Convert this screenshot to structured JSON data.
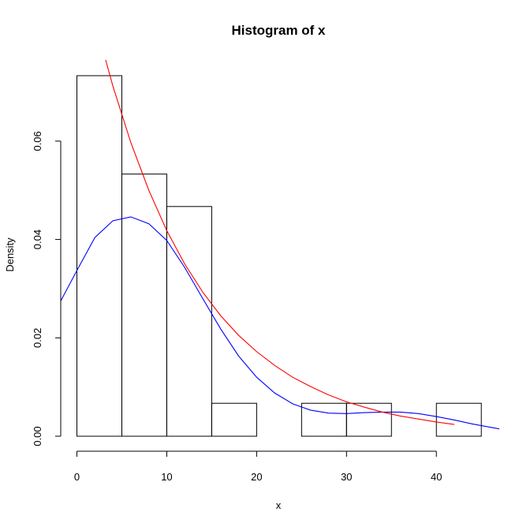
{
  "chart_data": {
    "type": "bar",
    "title": "Histogram of x",
    "xlabel": "x",
    "ylabel": "Density",
    "bins": [
      {
        "from": 0,
        "to": 5,
        "density": 0.0733
      },
      {
        "from": 5,
        "to": 10,
        "density": 0.0533
      },
      {
        "from": 10,
        "to": 15,
        "density": 0.0467
      },
      {
        "from": 15,
        "to": 20,
        "density": 0.0067
      },
      {
        "from": 20,
        "to": 25,
        "density": 0.0
      },
      {
        "from": 25,
        "to": 30,
        "density": 0.0067
      },
      {
        "from": 30,
        "to": 35,
        "density": 0.0067
      },
      {
        "from": 35,
        "to": 40,
        "density": 0.0
      },
      {
        "from": 40,
        "to": 45,
        "density": 0.0067
      }
    ],
    "xlim": [
      -1.8,
      47
    ],
    "ylim": [
      0,
      0.0765
    ],
    "x_ticks": [
      {
        "value": 0,
        "label": "0"
      },
      {
        "value": 10,
        "label": "10"
      },
      {
        "value": 20,
        "label": "20"
      },
      {
        "value": 30,
        "label": "30"
      },
      {
        "value": 40,
        "label": "40"
      }
    ],
    "y_ticks": [
      {
        "value": 0,
        "label": "0.00"
      },
      {
        "value": 0.02,
        "label": "0.02"
      },
      {
        "value": 0.04,
        "label": "0.04"
      },
      {
        "value": 0.06,
        "label": "0.06"
      }
    ],
    "series": [
      {
        "type": "line",
        "color": "#0000ff",
        "points": [
          [
            -1.8,
            0.0275
          ],
          [
            0,
            0.0337
          ],
          [
            2,
            0.0404
          ],
          [
            4,
            0.0438
          ],
          [
            6,
            0.0446
          ],
          [
            8,
            0.0432
          ],
          [
            10,
            0.0398
          ],
          [
            12,
            0.0343
          ],
          [
            14,
            0.028
          ],
          [
            16,
            0.0218
          ],
          [
            18,
            0.0163
          ],
          [
            20,
            0.012
          ],
          [
            22,
            0.0088
          ],
          [
            24,
            0.0066
          ],
          [
            26,
            0.0053
          ],
          [
            28,
            0.0047
          ],
          [
            30,
            0.0046
          ],
          [
            32,
            0.0048
          ],
          [
            34,
            0.0049
          ],
          [
            36,
            0.0049
          ],
          [
            38,
            0.0046
          ],
          [
            40,
            0.004
          ],
          [
            42,
            0.0033
          ],
          [
            44,
            0.0025
          ],
          [
            47,
            0.0015
          ]
        ]
      },
      {
        "type": "line",
        "color": "#ff0000",
        "points": [
          [
            3.2,
            0.0765
          ],
          [
            4,
            0.0712
          ],
          [
            6,
            0.0597
          ],
          [
            8,
            0.05
          ],
          [
            10,
            0.0418
          ],
          [
            12,
            0.035
          ],
          [
            14,
            0.0293
          ],
          [
            16,
            0.0245
          ],
          [
            18,
            0.0205
          ],
          [
            20,
            0.0172
          ],
          [
            22,
            0.0144
          ],
          [
            24,
            0.012
          ],
          [
            26,
            0.0101
          ],
          [
            28,
            0.0084
          ],
          [
            30,
            0.007
          ],
          [
            32,
            0.0059
          ],
          [
            34,
            0.0049
          ],
          [
            36,
            0.0041
          ],
          [
            38,
            0.0035
          ],
          [
            40,
            0.0029
          ],
          [
            42,
            0.0024
          ]
        ]
      }
    ],
    "grid": false,
    "legend": "none"
  }
}
